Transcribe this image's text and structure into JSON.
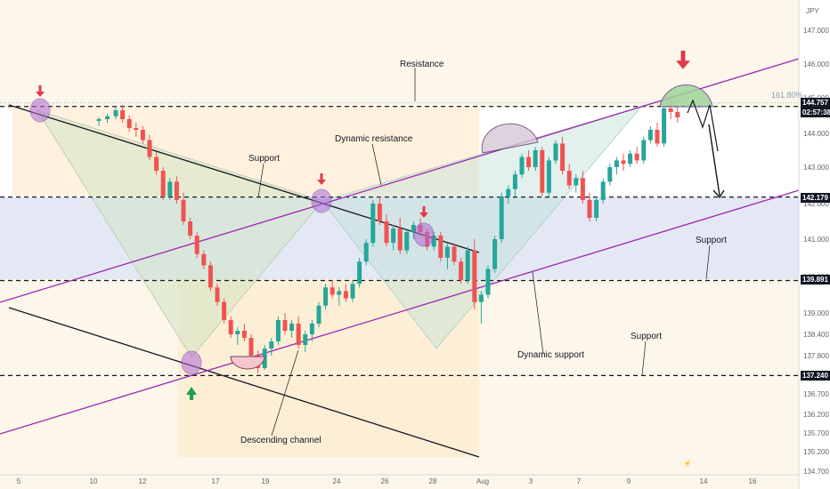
{
  "chart_data": {
    "type": "candlestick",
    "currency_label": "JPY",
    "y_ticks": [
      "147.000",
      "146.000",
      "145.000",
      "144.000",
      "143.000",
      "142.000",
      "141.000",
      "140.000",
      "139.000",
      "138.400",
      "137.800",
      "137.200",
      "136.700",
      "136.200",
      "135.700",
      "135.200",
      "134.700"
    ],
    "x_ticks": [
      "5",
      "10",
      "12",
      "17",
      "19",
      "24",
      "26",
      "28",
      "Aug",
      "3",
      "7",
      "9",
      "14",
      "16"
    ],
    "price_tags": [
      {
        "label": "144.757",
        "color": "#131722"
      },
      {
        "label": "02:57:38",
        "color": "#131722"
      },
      {
        "label": "142.179",
        "color": "#131722"
      },
      {
        "label": "139.891",
        "color": "#131722"
      },
      {
        "label": "137.240",
        "color": "#131722"
      }
    ],
    "fib_label": "161.80%",
    "annotations": [
      "Resistance",
      "Dynamic resistance",
      "Support",
      "Support",
      "Support",
      "Dynamic support",
      "Descending channel"
    ],
    "levels": [
      144.757,
      142.179,
      139.891,
      137.24
    ],
    "candles": [
      [
        5,
        144.35,
        144.45,
        144.2,
        144.4
      ],
      [
        5.5,
        144.4,
        144.55,
        144.3,
        144.48
      ],
      [
        6,
        144.48,
        144.75,
        144.4,
        144.65
      ],
      [
        6.4,
        144.65,
        144.8,
        144.3,
        144.4
      ],
      [
        6.8,
        144.4,
        144.5,
        144.05,
        144.15
      ],
      [
        7.2,
        144.15,
        144.3,
        143.9,
        144.1
      ],
      [
        7.6,
        144.1,
        144.2,
        143.7,
        143.8
      ],
      [
        8,
        143.8,
        143.95,
        143.2,
        143.3
      ],
      [
        8.4,
        143.3,
        143.45,
        142.8,
        142.9
      ],
      [
        8.8,
        142.9,
        143.0,
        142.1,
        142.2
      ],
      [
        9.2,
        142.2,
        142.7,
        142.1,
        142.6
      ],
      [
        9.6,
        142.6,
        142.75,
        142.0,
        142.1
      ],
      [
        10,
        142.1,
        142.3,
        141.4,
        141.5
      ],
      [
        10.4,
        141.5,
        141.6,
        141.0,
        141.1
      ],
      [
        10.8,
        141.1,
        141.2,
        140.5,
        140.6
      ],
      [
        11.2,
        140.6,
        140.7,
        140.2,
        140.3
      ],
      [
        11.6,
        140.3,
        140.4,
        139.6,
        139.7
      ],
      [
        12,
        139.7,
        139.8,
        139.2,
        139.3
      ],
      [
        12.4,
        139.3,
        139.4,
        138.7,
        138.8
      ],
      [
        12.8,
        138.8,
        138.9,
        138.3,
        138.4
      ],
      [
        13.2,
        138.4,
        138.6,
        138.1,
        138.5
      ],
      [
        13.6,
        138.5,
        138.7,
        138.2,
        138.3
      ],
      [
        14,
        138.3,
        138.4,
        137.7,
        137.8
      ],
      [
        14.4,
        137.8,
        137.95,
        137.3,
        137.45
      ],
      [
        14.8,
        137.45,
        138.1,
        137.4,
        138.0
      ],
      [
        15.2,
        138.0,
        138.3,
        137.8,
        138.2
      ],
      [
        15.6,
        138.2,
        138.9,
        138.1,
        138.8
      ],
      [
        16,
        138.8,
        139.0,
        138.4,
        138.5
      ],
      [
        16.4,
        138.5,
        138.8,
        138.3,
        138.7
      ],
      [
        16.8,
        138.7,
        138.9,
        138.0,
        138.1
      ],
      [
        17.2,
        138.1,
        138.5,
        137.9,
        138.4
      ],
      [
        17.6,
        138.4,
        138.8,
        138.2,
        138.7
      ],
      [
        18,
        138.7,
        139.3,
        138.6,
        139.2
      ],
      [
        18.4,
        139.2,
        139.8,
        139.1,
        139.7
      ],
      [
        18.8,
        139.7,
        139.9,
        139.4,
        139.5
      ],
      [
        19.2,
        139.5,
        139.7,
        139.2,
        139.6
      ],
      [
        19.6,
        139.6,
        139.8,
        139.3,
        139.4
      ],
      [
        20,
        139.4,
        139.9,
        139.3,
        139.8
      ],
      [
        20.4,
        139.8,
        140.5,
        139.7,
        140.4
      ],
      [
        20.8,
        140.4,
        141.0,
        140.3,
        140.9
      ],
      [
        21.2,
        140.9,
        142.1,
        140.8,
        142.0
      ],
      [
        21.6,
        142.0,
        142.2,
        141.4,
        141.5
      ],
      [
        22,
        141.5,
        141.7,
        140.8,
        140.9
      ],
      [
        22.4,
        140.9,
        141.4,
        140.7,
        141.3
      ],
      [
        22.8,
        141.3,
        141.6,
        140.6,
        140.7
      ],
      [
        23.2,
        140.7,
        141.3,
        140.6,
        141.2
      ],
      [
        23.6,
        141.2,
        141.5,
        141.0,
        141.4
      ],
      [
        24,
        141.4,
        141.6,
        141.1,
        141.2
      ],
      [
        24.4,
        141.2,
        141.3,
        140.7,
        140.8
      ],
      [
        24.8,
        140.8,
        141.2,
        140.7,
        141.1
      ],
      [
        25.2,
        141.1,
        141.2,
        140.4,
        140.5
      ],
      [
        25.6,
        140.5,
        140.9,
        140.2,
        140.8
      ],
      [
        26,
        140.8,
        140.9,
        140.3,
        140.4
      ],
      [
        26.4,
        140.4,
        140.5,
        139.8,
        139.9
      ],
      [
        26.8,
        139.9,
        140.8,
        139.8,
        140.7
      ],
      [
        27.2,
        140.7,
        141.0,
        139.1,
        139.3
      ],
      [
        27.6,
        139.3,
        139.6,
        138.7,
        139.5
      ],
      [
        28,
        139.5,
        140.3,
        139.4,
        140.2
      ],
      [
        28.4,
        140.2,
        141.1,
        140.1,
        141.0
      ],
      [
        28.8,
        141.0,
        142.3,
        140.9,
        142.2
      ],
      [
        29.2,
        142.2,
        142.5,
        142.0,
        142.4
      ],
      [
        29.6,
        142.4,
        142.9,
        142.2,
        142.8
      ],
      [
        30,
        142.8,
        143.4,
        142.7,
        143.3
      ],
      [
        30.4,
        143.3,
        143.5,
        142.9,
        143.0
      ],
      [
        30.8,
        143.0,
        143.6,
        142.9,
        143.5
      ],
      [
        31.2,
        143.5,
        143.6,
        142.2,
        142.3
      ],
      [
        31.6,
        142.3,
        143.3,
        142.2,
        143.2
      ],
      [
        32,
        143.2,
        143.8,
        143.1,
        143.7
      ],
      [
        32.4,
        143.7,
        143.9,
        142.8,
        142.9
      ],
      [
        32.8,
        142.9,
        143.1,
        142.4,
        142.5
      ],
      [
        33.2,
        142.5,
        142.8,
        142.3,
        142.7
      ],
      [
        33.6,
        142.7,
        142.9,
        142.0,
        142.1
      ],
      [
        34,
        142.1,
        142.3,
        141.5,
        141.6
      ],
      [
        34.4,
        141.6,
        142.2,
        141.5,
        142.1
      ],
      [
        34.8,
        142.1,
        142.7,
        142.0,
        142.6
      ],
      [
        35.2,
        142.6,
        143.1,
        142.5,
        143.0
      ],
      [
        35.6,
        143.0,
        143.3,
        142.8,
        143.2
      ],
      [
        36,
        143.2,
        143.4,
        142.9,
        143.1
      ],
      [
        36.4,
        143.1,
        143.5,
        143.0,
        143.4
      ],
      [
        36.8,
        143.4,
        143.6,
        143.1,
        143.2
      ],
      [
        37.2,
        143.2,
        143.9,
        143.1,
        143.8
      ],
      [
        37.6,
        143.8,
        144.2,
        143.7,
        144.1
      ],
      [
        38,
        144.1,
        144.3,
        143.6,
        143.7
      ],
      [
        38.4,
        143.7,
        144.8,
        143.6,
        144.7
      ],
      [
        38.8,
        144.7,
        145.0,
        144.4,
        144.6
      ],
      [
        39.2,
        144.6,
        144.75,
        144.3,
        144.45
      ]
    ]
  }
}
